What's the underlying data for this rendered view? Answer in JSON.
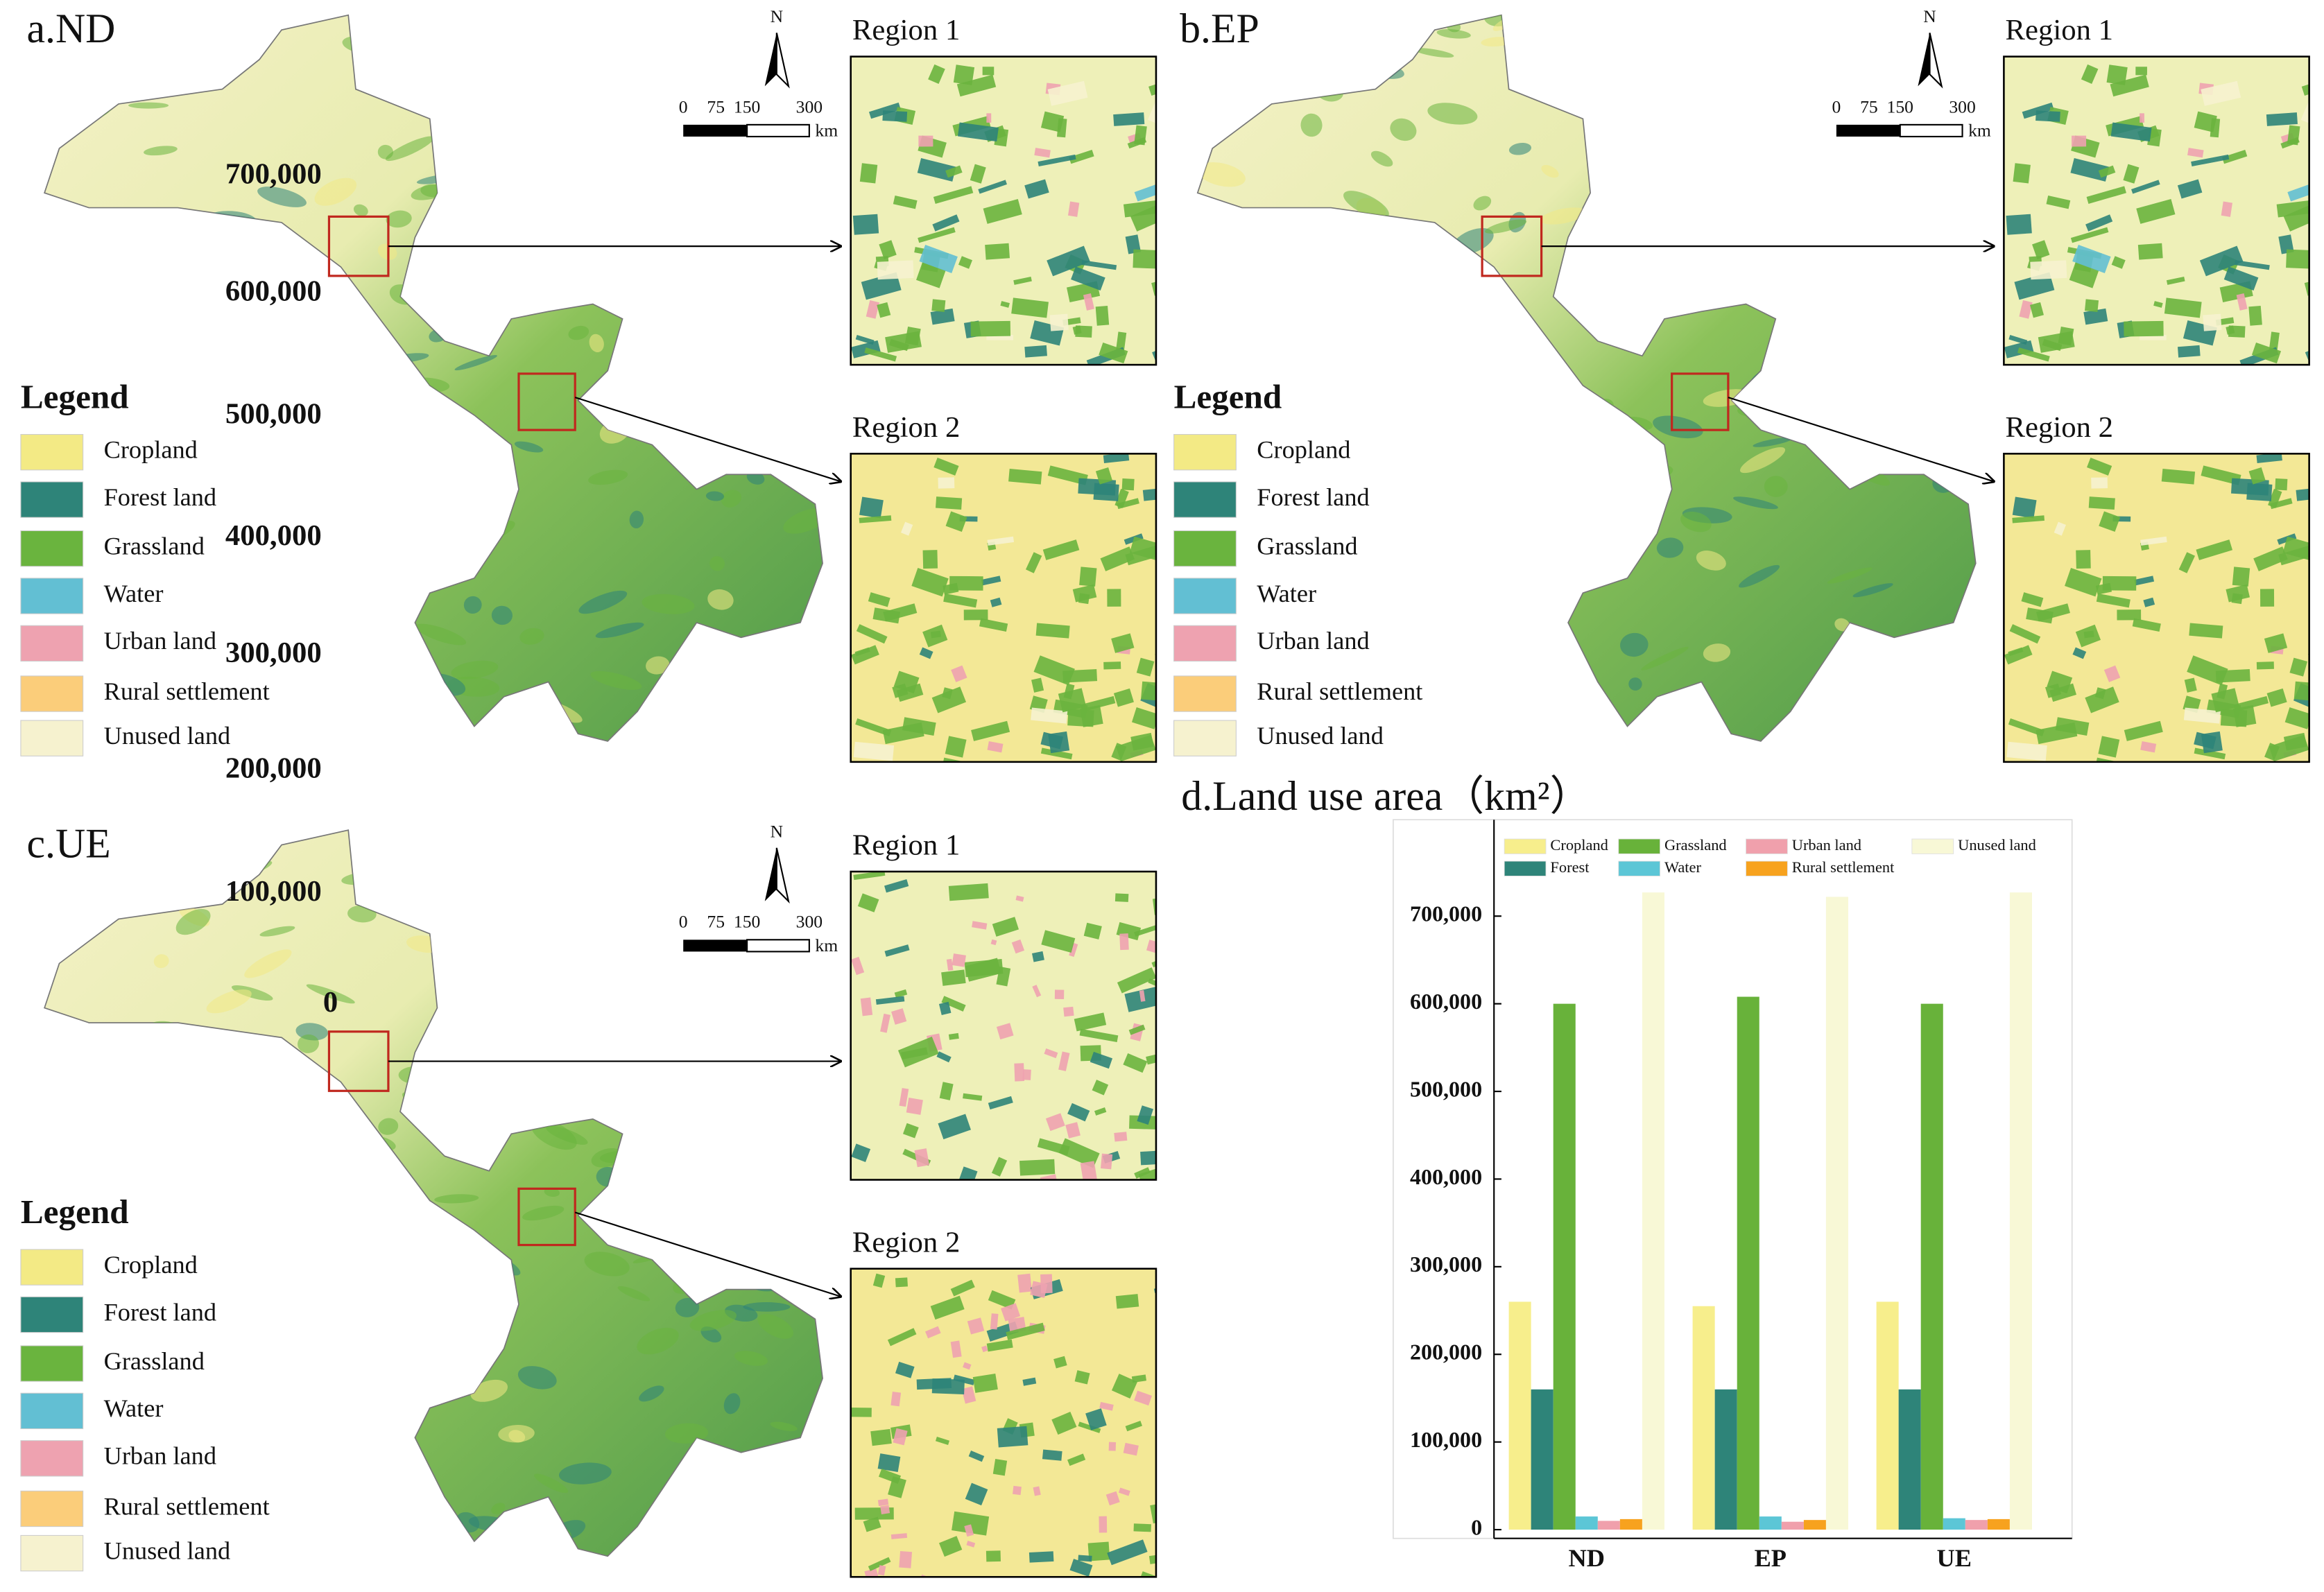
{
  "panels": [
    {
      "title": "a.ND",
      "north": "N",
      "scale_labels": [
        "0",
        "75",
        "150",
        "300"
      ],
      "scale_unit": "km",
      "regions": [
        "Region 1",
        "Region 2"
      ],
      "legend_title": "Legend",
      "legend": [
        {
          "label": "Cropland",
          "color": "#f3ea85"
        },
        {
          "label": "Forest land",
          "color": "#2e8479"
        },
        {
          "label": "Grassland",
          "color": "#6ab43e"
        },
        {
          "label": "Water",
          "color": "#62bfd3"
        },
        {
          "label": "Urban land",
          "color": "#eea2b0"
        },
        {
          "label": "Rural settlement",
          "color": "#fbcd7a"
        },
        {
          "label": "Unused land",
          "color": "#f6f2cf"
        }
      ]
    },
    {
      "title": "b.EP",
      "north": "N",
      "scale_labels": [
        "0",
        "75",
        "150",
        "300"
      ],
      "scale_unit": "km",
      "regions": [
        "Region 1",
        "Region 2"
      ],
      "legend_title": "Legend",
      "legend": [
        {
          "label": "Cropland",
          "color": "#f3ea85"
        },
        {
          "label": "Forest land",
          "color": "#2e8479"
        },
        {
          "label": "Grassland",
          "color": "#6ab43e"
        },
        {
          "label": "Water",
          "color": "#62bfd3"
        },
        {
          "label": "Urban land",
          "color": "#eea2b0"
        },
        {
          "label": "Rural settlement",
          "color": "#fbcd7a"
        },
        {
          "label": "Unused land",
          "color": "#f6f2cf"
        }
      ]
    },
    {
      "title": "c.UE",
      "north": "N",
      "scale_labels": [
        "0",
        "75",
        "150",
        "300"
      ],
      "scale_unit": "km",
      "regions": [
        "Region 1",
        "Region 2"
      ],
      "legend_title": "Legend",
      "legend": [
        {
          "label": "Cropland",
          "color": "#f3ea85"
        },
        {
          "label": "Forest land",
          "color": "#2e8479"
        },
        {
          "label": "Grassland",
          "color": "#6ab43e"
        },
        {
          "label": "Water",
          "color": "#62bfd3"
        },
        {
          "label": "Urban land",
          "color": "#eea2b0"
        },
        {
          "label": "Rural settlement",
          "color": "#fbcd7a"
        },
        {
          "label": "Unused land",
          "color": "#f6f2cf"
        }
      ]
    }
  ],
  "chart_data": {
    "type": "bar",
    "title": "d.Land use area（km²）",
    "categories": [
      "ND",
      "EP",
      "UE"
    ],
    "series": [
      {
        "name": "Cropland",
        "color": "#f7ee8c",
        "values": [
          260000,
          255000,
          260000
        ]
      },
      {
        "name": "Forest",
        "color": "#2e8479",
        "values": [
          160000,
          160000,
          160000
        ]
      },
      {
        "name": "Grassland",
        "color": "#68b23a",
        "values": [
          600000,
          608000,
          600000
        ]
      },
      {
        "name": "Water",
        "color": "#5cc6d6",
        "values": [
          15000,
          15000,
          13000
        ]
      },
      {
        "name": "Urban land",
        "color": "#f0a0ac",
        "values": [
          10000,
          9000,
          11000
        ]
      },
      {
        "name": "Rural settlement",
        "color": "#f7a21e",
        "values": [
          12000,
          11000,
          12000
        ]
      },
      {
        "name": "Unused land",
        "color": "#f8f8d6",
        "values": [
          727000,
          722000,
          727000
        ]
      }
    ],
    "ylim": [
      -10000,
      810000
    ],
    "yticks": [
      {
        "value": 0,
        "label": "0"
      },
      {
        "value": 100000,
        "label": "100,000"
      },
      {
        "value": 200000,
        "label": "200,000"
      },
      {
        "value": 300000,
        "label": "300,000"
      },
      {
        "value": 400000,
        "label": "400,000"
      },
      {
        "value": 500000,
        "label": "500,000"
      },
      {
        "value": 600000,
        "label": "600,000"
      },
      {
        "value": 700000,
        "label": "700,000"
      }
    ],
    "legend": "top"
  }
}
